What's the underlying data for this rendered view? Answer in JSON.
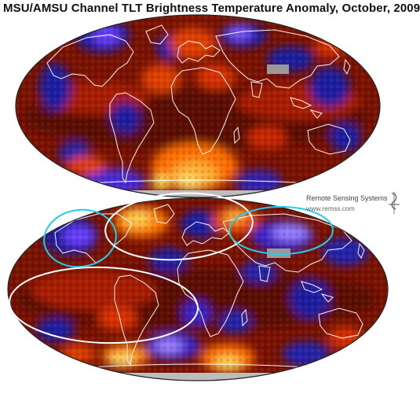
{
  "figure": {
    "title": "MSU/AMSU Channel TLT Brightness Temperature Anomaly, October, 2009",
    "credit": {
      "org": "Remote Sensing Systems",
      "url": "www.remss.com",
      "logo_icon": "remss-logo-icon"
    }
  },
  "colors": {
    "warm_dark": "#5a0a00",
    "warm": "#b81e00",
    "hot": "#ff7a00",
    "hottest": "#ffe060",
    "cool": "#1a1aa0",
    "cooler": "#5533dd",
    "coolest": "#b89cff",
    "nodata": "#9a9a9a",
    "coastline": "#ffffff",
    "highlight_cyan": "#22ccee",
    "highlight_white": "#ffffff"
  },
  "maps": [
    {
      "name": "top-globe-map",
      "projection": "mollweide",
      "annotations": 0
    },
    {
      "name": "bottom-globe-map",
      "projection": "mollweide",
      "annotations": 4
    }
  ]
}
